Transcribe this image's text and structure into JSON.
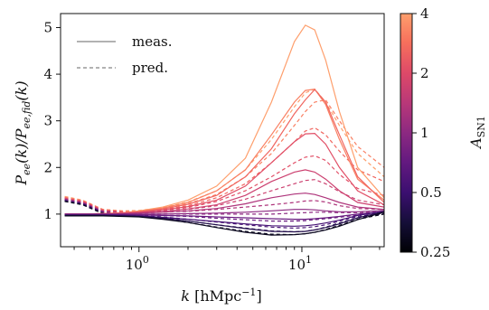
{
  "chart_data": {
    "type": "line",
    "xscale": "log",
    "xlim": [
      0.33,
      32
    ],
    "ylim": [
      0.3,
      5.3
    ],
    "xlabel_tex": {
      "pre": "k ",
      "bracket_open": "[",
      "unit": "hMpc",
      "sup": "−1",
      "bracket_close": "]"
    },
    "ylabel_tex": {
      "num": "P",
      "num_sub": "ee",
      "num_arg": "(k)/",
      "den": "P",
      "den_sub": "ee,fid",
      "den_arg": "(k)"
    },
    "x_ticks": [
      {
        "value": 1,
        "base": "10",
        "exp": "0"
      },
      {
        "value": 10,
        "base": "10",
        "exp": "1"
      }
    ],
    "y_ticks": [
      "1",
      "2",
      "3",
      "4",
      "5"
    ],
    "y_tick_values": [
      1,
      2,
      3,
      4,
      5
    ],
    "legend": {
      "placement": "top-left",
      "entries": [
        {
          "label": "meas.",
          "style": "solid"
        },
        {
          "label": "pred.",
          "style": "dashed"
        }
      ]
    },
    "colorbar": {
      "label_main": "A",
      "label_sub": "SN1",
      "scale": "log",
      "range": [
        0.25,
        4
      ],
      "colormap": "magma",
      "ticks": [
        {
          "value": 4,
          "label": "4"
        },
        {
          "value": 2,
          "label": "2"
        },
        {
          "value": 1,
          "label": "1"
        },
        {
          "value": 0.5,
          "label": "0.5"
        },
        {
          "value": 0.25,
          "label": "0.25"
        }
      ]
    },
    "x": [
      0.35,
      0.45,
      0.6,
      0.8,
      1.0,
      1.4,
      2.0,
      3.0,
      4.5,
      6.5,
      9.0,
      10.5,
      12.0,
      14.0,
      17.0,
      22.0,
      32.0
    ],
    "series_meas": [
      {
        "a_sn1": 4.0,
        "values": [
          1.0,
          1.0,
          1.01,
          1.03,
          1.07,
          1.15,
          1.3,
          1.6,
          2.2,
          3.4,
          4.7,
          5.05,
          4.95,
          4.3,
          3.2,
          2.0,
          1.35
        ]
      },
      {
        "a_sn1": 3.2,
        "values": [
          1.0,
          1.0,
          1.01,
          1.03,
          1.06,
          1.13,
          1.25,
          1.5,
          1.95,
          2.7,
          3.4,
          3.65,
          3.68,
          3.35,
          2.6,
          1.75,
          1.3
        ]
      },
      {
        "a_sn1": 2.6,
        "values": [
          1.0,
          1.0,
          1.01,
          1.02,
          1.05,
          1.11,
          1.21,
          1.4,
          1.8,
          2.4,
          3.15,
          3.45,
          3.67,
          3.4,
          2.7,
          1.8,
          1.25
        ]
      },
      {
        "a_sn1": 2.1,
        "values": [
          1.0,
          1.0,
          1.0,
          1.02,
          1.04,
          1.09,
          1.16,
          1.3,
          1.6,
          2.1,
          2.55,
          2.72,
          2.73,
          2.5,
          2.0,
          1.5,
          1.2
        ]
      },
      {
        "a_sn1": 1.7,
        "values": [
          1.0,
          1.0,
          1.0,
          1.01,
          1.03,
          1.06,
          1.11,
          1.2,
          1.4,
          1.7,
          1.9,
          1.95,
          1.9,
          1.75,
          1.5,
          1.25,
          1.15
        ]
      },
      {
        "a_sn1": 1.3,
        "values": [
          1.0,
          1.0,
          1.0,
          1.01,
          1.02,
          1.04,
          1.07,
          1.12,
          1.22,
          1.35,
          1.43,
          1.45,
          1.42,
          1.35,
          1.25,
          1.15,
          1.1
        ]
      },
      {
        "a_sn1": 1.0,
        "values": [
          1.0,
          1.0,
          1.0,
          1.0,
          1.0,
          1.0,
          1.01,
          1.02,
          1.04,
          1.07,
          1.1,
          1.1,
          1.09,
          1.07,
          1.05,
          1.05,
          1.08
        ]
      },
      {
        "a_sn1": 0.75,
        "values": [
          0.99,
          0.99,
          0.99,
          0.99,
          0.98,
          0.97,
          0.96,
          0.94,
          0.92,
          0.9,
          0.89,
          0.89,
          0.9,
          0.92,
          0.95,
          1.0,
          1.06
        ]
      },
      {
        "a_sn1": 0.55,
        "values": [
          0.98,
          0.98,
          0.98,
          0.97,
          0.96,
          0.93,
          0.89,
          0.84,
          0.79,
          0.75,
          0.74,
          0.75,
          0.77,
          0.81,
          0.87,
          0.97,
          1.06
        ]
      },
      {
        "a_sn1": 0.4,
        "values": [
          0.97,
          0.97,
          0.97,
          0.96,
          0.95,
          0.91,
          0.85,
          0.77,
          0.69,
          0.63,
          0.62,
          0.63,
          0.66,
          0.71,
          0.79,
          0.92,
          1.05
        ]
      },
      {
        "a_sn1": 0.3,
        "values": [
          0.96,
          0.96,
          0.96,
          0.95,
          0.94,
          0.89,
          0.82,
          0.71,
          0.61,
          0.55,
          0.56,
          0.58,
          0.61,
          0.66,
          0.74,
          0.88,
          1.04
        ]
      }
    ],
    "series_pred": [
      {
        "a_sn1": 4.0,
        "values": [
          1.38,
          1.3,
          1.1,
          1.07,
          1.08,
          1.14,
          1.26,
          1.5,
          1.95,
          2.6,
          3.3,
          3.6,
          3.68,
          3.4,
          2.9,
          2.3,
          1.8
        ]
      },
      {
        "a_sn1": 3.2,
        "values": [
          1.36,
          1.29,
          1.1,
          1.06,
          1.06,
          1.12,
          1.22,
          1.42,
          1.8,
          2.3,
          2.9,
          3.2,
          3.4,
          3.45,
          3.0,
          2.45,
          2.0
        ]
      },
      {
        "a_sn1": 2.6,
        "values": [
          1.35,
          1.28,
          1.09,
          1.05,
          1.05,
          1.1,
          1.18,
          1.35,
          1.65,
          2.1,
          2.55,
          2.78,
          2.85,
          2.7,
          2.35,
          1.95,
          1.7
        ]
      },
      {
        "a_sn1": 2.1,
        "values": [
          1.34,
          1.27,
          1.08,
          1.04,
          1.04,
          1.08,
          1.14,
          1.27,
          1.5,
          1.8,
          2.1,
          2.22,
          2.25,
          2.15,
          1.85,
          1.55,
          1.4
        ]
      },
      {
        "a_sn1": 1.7,
        "values": [
          1.33,
          1.26,
          1.07,
          1.03,
          1.03,
          1.06,
          1.1,
          1.18,
          1.32,
          1.5,
          1.65,
          1.72,
          1.74,
          1.65,
          1.48,
          1.3,
          1.2
        ]
      },
      {
        "a_sn1": 1.3,
        "values": [
          1.32,
          1.25,
          1.06,
          1.02,
          1.02,
          1.04,
          1.06,
          1.1,
          1.15,
          1.2,
          1.25,
          1.28,
          1.29,
          1.26,
          1.18,
          1.12,
          1.1
        ]
      },
      {
        "a_sn1": 1.0,
        "values": [
          1.31,
          1.24,
          1.05,
          1.01,
          1.0,
          1.0,
          1.0,
          1.0,
          1.0,
          1.0,
          1.02,
          1.03,
          1.04,
          1.04,
          1.03,
          1.03,
          1.05
        ]
      },
      {
        "a_sn1": 0.75,
        "values": [
          1.3,
          1.23,
          1.04,
          1.0,
          0.99,
          0.97,
          0.95,
          0.91,
          0.88,
          0.85,
          0.85,
          0.86,
          0.88,
          0.9,
          0.93,
          0.98,
          1.03
        ]
      },
      {
        "a_sn1": 0.55,
        "values": [
          1.29,
          1.22,
          1.03,
          0.99,
          0.97,
          0.94,
          0.89,
          0.83,
          0.77,
          0.72,
          0.7,
          0.71,
          0.73,
          0.77,
          0.85,
          0.95,
          1.02
        ]
      },
      {
        "a_sn1": 0.4,
        "values": [
          1.28,
          1.21,
          1.02,
          0.98,
          0.96,
          0.92,
          0.85,
          0.77,
          0.7,
          0.64,
          0.62,
          0.63,
          0.66,
          0.72,
          0.81,
          0.92,
          1.01
        ]
      },
      {
        "a_sn1": 0.3,
        "values": [
          1.27,
          1.2,
          1.01,
          0.97,
          0.95,
          0.9,
          0.82,
          0.72,
          0.63,
          0.57,
          0.56,
          0.58,
          0.61,
          0.67,
          0.76,
          0.89,
          1.0
        ]
      }
    ]
  }
}
